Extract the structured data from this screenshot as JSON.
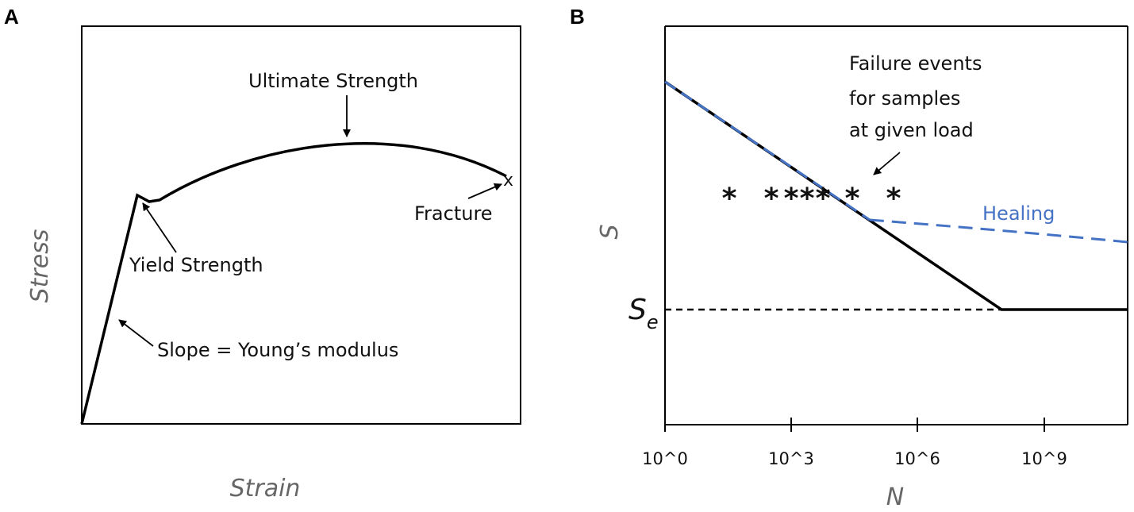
{
  "panel_a": {
    "letter": "A",
    "x_title": "Strain",
    "y_title": "Stress",
    "annotations": {
      "ultimate": "Ultimate Strength",
      "fracture": "Fracture",
      "fracture_mark": "x",
      "yield": "Yield Strength",
      "slope": "Slope = Young’s modulus"
    }
  },
  "panel_b": {
    "letter": "B",
    "x_title": "N",
    "y_title": "S",
    "se_main": "S",
    "se_sub": "e",
    "ticks": [
      "10^0",
      "10^3",
      "10^6",
      "10^9"
    ],
    "failure_text": [
      "Failure events",
      "for samples",
      "at given load"
    ],
    "healing": "Healing",
    "star_glyph": "*",
    "colors": {
      "healing": "#4472C4",
      "curve": "#000000"
    }
  }
}
